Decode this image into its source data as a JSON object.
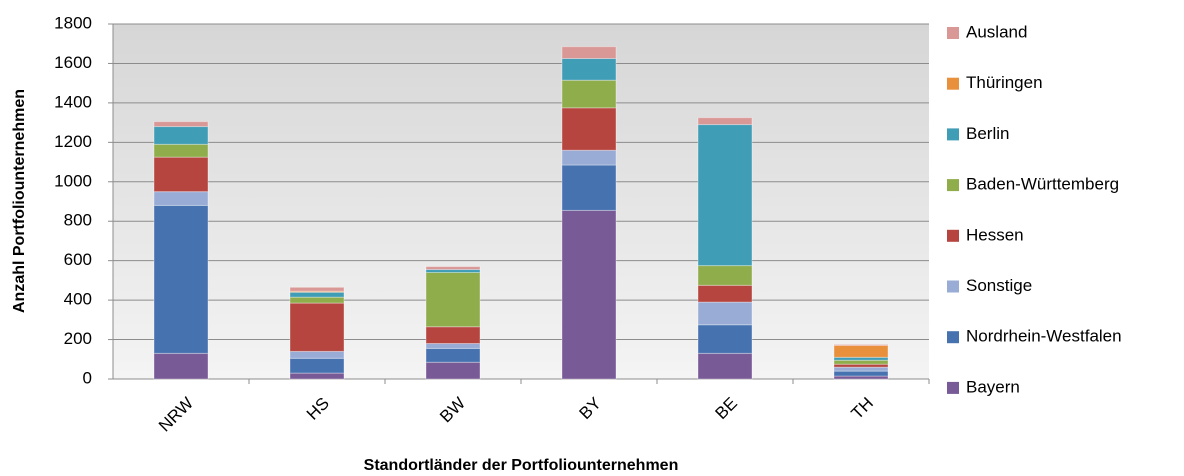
{
  "chart_data": {
    "type": "stacked_bar",
    "x_label": "Standortländer der Portfoliounternehmen",
    "y_label": "Anzahl Portfoliounternehmen",
    "categories": [
      "NRW",
      "HS",
      "BW",
      "BY",
      "BE",
      "TH"
    ],
    "series": [
      {
        "name": "Bayern",
        "color": "#785a96",
        "values": [
          130,
          30,
          85,
          855,
          130,
          15
        ]
      },
      {
        "name": "Nordrhein-Westfalen",
        "color": "#4672b0",
        "values": [
          750,
          75,
          70,
          230,
          145,
          25
        ]
      },
      {
        "name": "Sonstige",
        "color": "#98acd6",
        "values": [
          70,
          35,
          25,
          75,
          115,
          20
        ]
      },
      {
        "name": "Hessen",
        "color": "#b6443f",
        "values": [
          175,
          245,
          85,
          215,
          85,
          15
        ]
      },
      {
        "name": "Baden-Württemberg",
        "color": "#8fad4b",
        "values": [
          65,
          30,
          275,
          140,
          100,
          20
        ]
      },
      {
        "name": "Berlin",
        "color": "#409db6",
        "values": [
          90,
          25,
          15,
          110,
          715,
          15
        ]
      },
      {
        "name": "Thüringen",
        "color": "#e8903c",
        "values": [
          0,
          5,
          0,
          0,
          0,
          60
        ]
      },
      {
        "name": "Ausland",
        "color": "#d99795",
        "values": [
          25,
          20,
          15,
          60,
          35,
          5
        ]
      }
    ],
    "ylim": [
      0,
      1800
    ],
    "yticks": [
      0,
      200,
      400,
      600,
      800,
      1000,
      1200,
      1400,
      1600,
      1800
    ],
    "grid": true,
    "legend": "right"
  }
}
